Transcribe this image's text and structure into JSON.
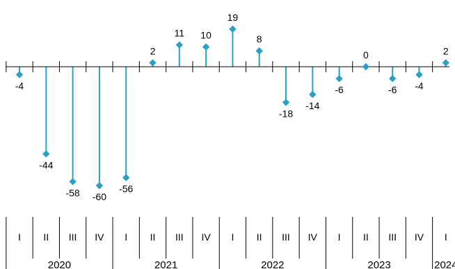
{
  "chart_data": {
    "type": "lollipop",
    "title": "",
    "xlabel": "",
    "ylabel": "",
    "ylim": [
      -62,
      20
    ],
    "grid": false,
    "legend": "none",
    "color": "#2aa0c8",
    "axis_color": "#000000",
    "quarters": [
      "I",
      "II",
      "III",
      "IV",
      "I",
      "II",
      "III",
      "IV",
      "I",
      "II",
      "III",
      "IV",
      "I",
      "II",
      "III",
      "IV",
      "I"
    ],
    "years": [
      {
        "label": "2020",
        "quarters": 4
      },
      {
        "label": "2021",
        "quarters": 4
      },
      {
        "label": "2022",
        "quarters": 4
      },
      {
        "label": "2023",
        "quarters": 4
      },
      {
        "label": "2024",
        "quarters": 1
      }
    ],
    "values": [
      -4,
      -44,
      -58,
      -60,
      -56,
      2,
      11,
      10,
      19,
      8,
      -18,
      -14,
      -6,
      0,
      -6,
      -4,
      2
    ],
    "value_labels": [
      "-4",
      "-44",
      "-58",
      "-60",
      "-56",
      "2",
      "11",
      "10",
      "19",
      "8",
      "-18",
      "-14",
      "-6",
      "0",
      "-6",
      "-4",
      "2"
    ]
  }
}
